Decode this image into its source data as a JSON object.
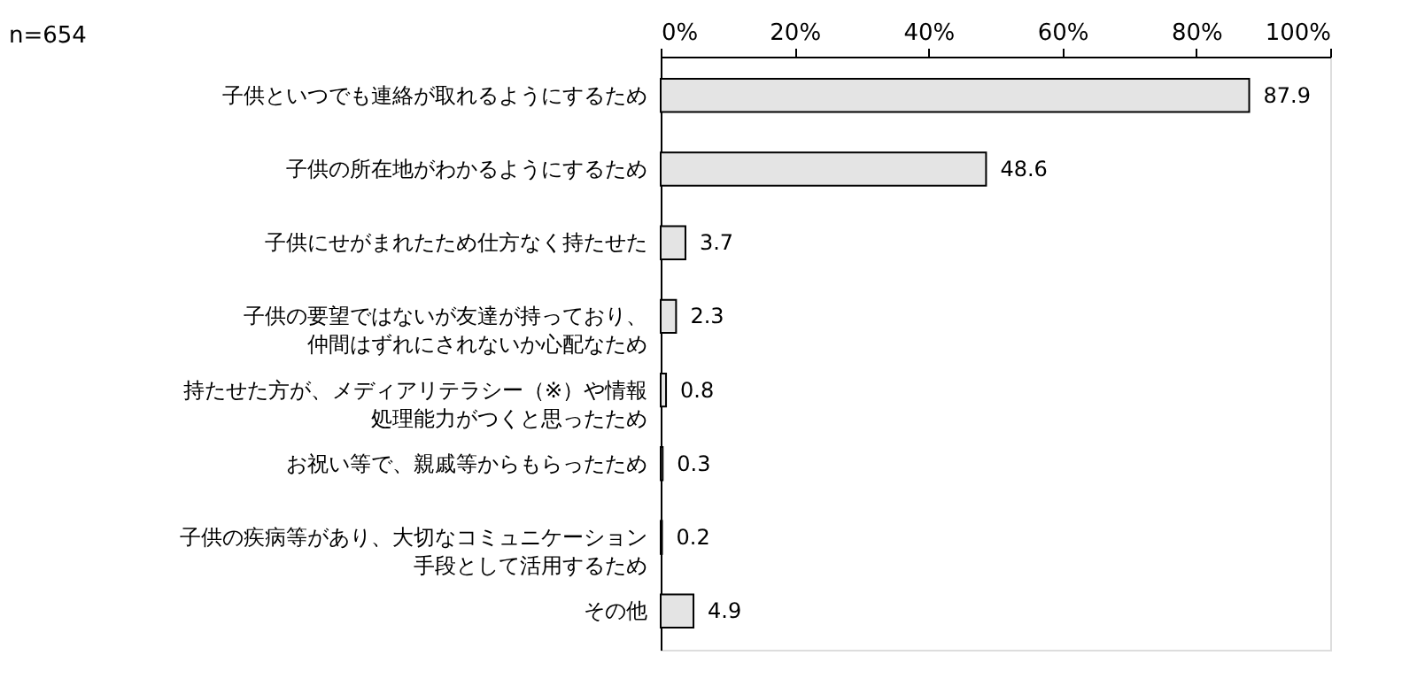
{
  "chart_data": {
    "type": "bar",
    "orientation": "horizontal",
    "categories": [
      "子供といつでも連絡が取れるようにするため",
      "子供の所在地がわかるようにするため",
      "子供にせがまれたため仕方なく持たせた",
      "子供の要望ではないが友達が持っており、仲間はずれにされないか心配なため",
      "持たせた方が、メディアリテラシー（※）や情報処理能力がつくと思ったため",
      "お祝い等で、親戚等からもらったため",
      "子供の疾病等があり、大切なコミュニケーション手段として活用するため",
      "その他"
    ],
    "values": [
      87.9,
      48.6,
      3.7,
      2.3,
      0.8,
      0.3,
      0.2,
      4.9
    ],
    "color": "#e4e4e4",
    "data_labels": true,
    "xlim": [
      0,
      100
    ],
    "xticks": [
      {
        "value": 0,
        "label": "0%"
      },
      {
        "value": 20,
        "label": "20%"
      },
      {
        "value": 40,
        "label": "40%"
      },
      {
        "value": 60,
        "label": "60%"
      },
      {
        "value": 80,
        "label": "80%"
      },
      {
        "value": 100,
        "label": "100%"
      }
    ],
    "grid": false,
    "annotations": [
      "n=654"
    ]
  }
}
